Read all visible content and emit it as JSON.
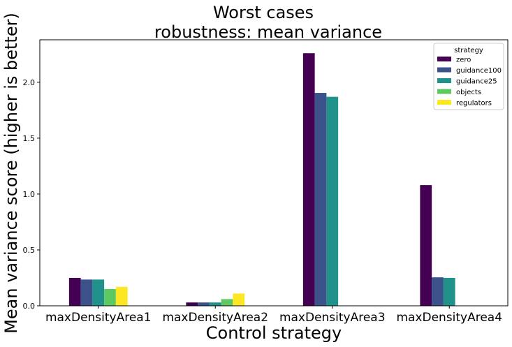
{
  "chart_data": {
    "type": "bar",
    "title": [
      "Worst cases",
      "robustness: mean variance"
    ],
    "xlabel": "Control strategy",
    "ylabel": "Mean variance score (higher is better)",
    "categories": [
      "maxDensityArea1",
      "maxDensityArea2",
      "maxDensityArea3",
      "maxDensityArea4"
    ],
    "ylim": [
      0,
      2.38
    ],
    "yticks": [
      0.0,
      0.5,
      1.0,
      1.5,
      2.0
    ],
    "ytick_labels": [
      "0.0",
      "0.5",
      "1.0",
      "1.5",
      "2.0"
    ],
    "grid": false,
    "legend": {
      "title": "strategy",
      "placement": "top-right"
    },
    "series": [
      {
        "name": "zero",
        "color": "#440154",
        "values": [
          0.25,
          0.03,
          2.26,
          1.08
        ]
      },
      {
        "name": "guidance100",
        "color": "#3b528b",
        "values": [
          0.235,
          0.03,
          1.905,
          0.255
        ]
      },
      {
        "name": "guidance25",
        "color": "#21918c",
        "values": [
          0.235,
          0.03,
          1.87,
          0.25
        ]
      },
      {
        "name": "objects",
        "color": "#5ec962",
        "values": [
          0.15,
          0.06,
          0,
          0
        ]
      },
      {
        "name": "regulators",
        "color": "#fde725",
        "values": [
          0.17,
          0.11,
          0,
          0
        ]
      }
    ]
  }
}
